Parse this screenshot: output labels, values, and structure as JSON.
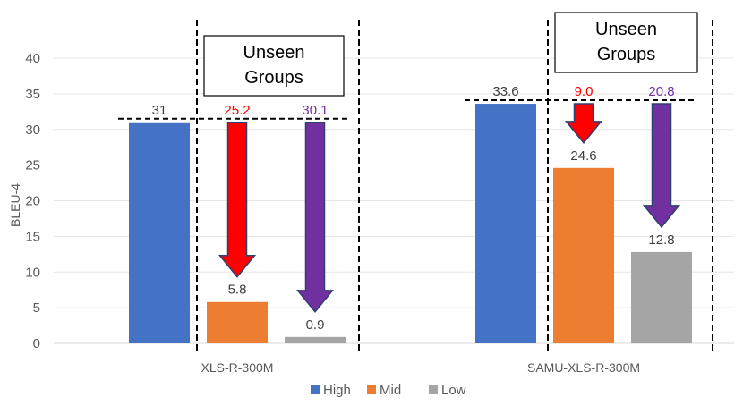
{
  "chart_data": {
    "type": "bar",
    "title": "",
    "xlabel": "",
    "ylabel": "BLEU-4",
    "ylim": [
      0,
      40
    ],
    "yticks": [
      0,
      5,
      10,
      15,
      20,
      25,
      30,
      35,
      40
    ],
    "grid": true,
    "legend_position": "bottom",
    "categories": [
      "XLS-R-300M",
      "SAMU-XLS-R-300M"
    ],
    "series": [
      {
        "name": "High",
        "color": "#4472C4",
        "values": [
          31,
          33.6
        ],
        "labels": [
          "31",
          "33.6"
        ]
      },
      {
        "name": "Mid",
        "color": "#ED7D31",
        "values": [
          5.8,
          24.6
        ],
        "labels": [
          "5.8",
          "24.6"
        ]
      },
      {
        "name": "Low",
        "color": "#A5A5A5",
        "values": [
          0.9,
          12.8
        ],
        "labels": [
          "0.9",
          "12.8"
        ]
      }
    ],
    "drops": [
      {
        "category": 0,
        "series": 1,
        "label": "25.2",
        "color": "#FF0000"
      },
      {
        "category": 0,
        "series": 2,
        "label": "30.1",
        "color": "#7030A0"
      },
      {
        "category": 1,
        "series": 1,
        "label": "9.0",
        "color": "#FF0000"
      },
      {
        "category": 1,
        "series": 2,
        "label": "20.8",
        "color": "#7030A0"
      }
    ],
    "annotations": [
      {
        "category": 0,
        "text_lines": [
          "Unseen",
          "Groups"
        ]
      },
      {
        "category": 1,
        "text_lines": [
          "Unseen",
          "Groups"
        ]
      }
    ]
  }
}
